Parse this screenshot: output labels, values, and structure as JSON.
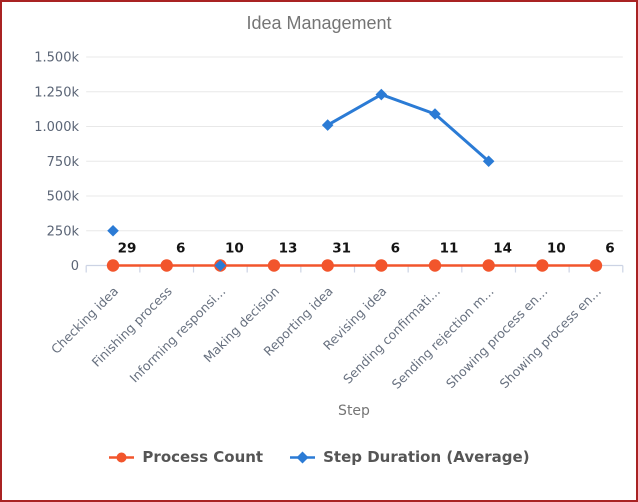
{
  "window": {
    "frame_border_color": "#a92323",
    "background_color": "#ffffff"
  },
  "chart_data": {
    "type": "line",
    "title": "Idea Management",
    "xlabel": "Step",
    "ylabel": "",
    "ylim": [
      0,
      1500000
    ],
    "grid": "horizontal",
    "legend_position": "bottom",
    "categories": [
      "Checking idea",
      "Finishing process",
      "Informing responsi…",
      "Making decision",
      "Reporting idea",
      "Revising idea",
      "Sending confirmati…",
      "Sending rejection m…",
      "Showing process en…",
      "Showing process en…"
    ],
    "y_ticks": [
      {
        "label": "0",
        "value": 0
      },
      {
        "label": "250k",
        "value": 250000
      },
      {
        "label": "500k",
        "value": 500000
      },
      {
        "label": "750k",
        "value": 750000
      },
      {
        "label": "1.000k",
        "value": 1000000
      },
      {
        "label": "1.250k",
        "value": 1250000
      },
      {
        "label": "1.500k",
        "value": 1500000
      }
    ],
    "series": [
      {
        "name": "Process Count",
        "color": "#f2552c",
        "marker": "circle",
        "values": [
          29,
          6,
          10,
          13,
          31,
          6,
          11,
          14,
          10,
          6
        ],
        "show_data_labels": true
      },
      {
        "name": "Step Duration (Average)",
        "color": "#2b7bd5",
        "marker": "diamond",
        "values": [
          250000,
          null,
          0,
          null,
          1010000,
          1230000,
          1090000,
          750000,
          null,
          null
        ],
        "show_data_labels": false
      }
    ],
    "style": {
      "gridline_color": "#e8e8e8",
      "axis_line_color": "#ccd3e4",
      "tick_label_color": "#5b6576",
      "category_label_color": "#67707f",
      "data_label_color": "#141414",
      "title_color": "#757575",
      "legend_text_color": "#555555"
    }
  }
}
